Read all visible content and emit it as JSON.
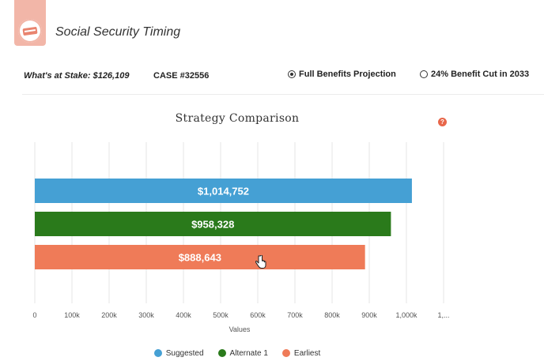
{
  "app": {
    "title": "Social Security Timing",
    "logo_icon": "card-badge-icon"
  },
  "info_bar": {
    "stake": "What's at Stake: $126,109",
    "case": "CASE #32556",
    "scenarios": [
      {
        "label": "Full Benefits Projection",
        "selected": true
      },
      {
        "label": "24% Benefit Cut in 2033",
        "selected": false
      }
    ]
  },
  "colors": {
    "suggested": "#45a0d4",
    "alternate": "#2a7a1b",
    "earliest": "#ef7b58",
    "accent": "#e8664a"
  },
  "help_icon": "question-icon",
  "chart_data": {
    "type": "bar",
    "orientation": "horizontal",
    "title": "Strategy Comparison",
    "xlabel": "Values",
    "xlim": [
      0,
      1100000
    ],
    "grid": true,
    "legend_position": "bottom",
    "tick_labels": [
      "0",
      "100k",
      "200k",
      "300k",
      "400k",
      "500k",
      "600k",
      "700k",
      "800k",
      "900k",
      "1,000k",
      "1,..."
    ],
    "series": [
      {
        "name": "Suggested",
        "value": 1014752,
        "label": "$1,014,752",
        "color": "#45a0d4"
      },
      {
        "name": "Alternate 1",
        "value": 958328,
        "label": "$958,328",
        "color": "#2a7a1b"
      },
      {
        "name": "Earliest",
        "value": 888643,
        "label": "$888,643",
        "color": "#ef7b58"
      }
    ]
  }
}
